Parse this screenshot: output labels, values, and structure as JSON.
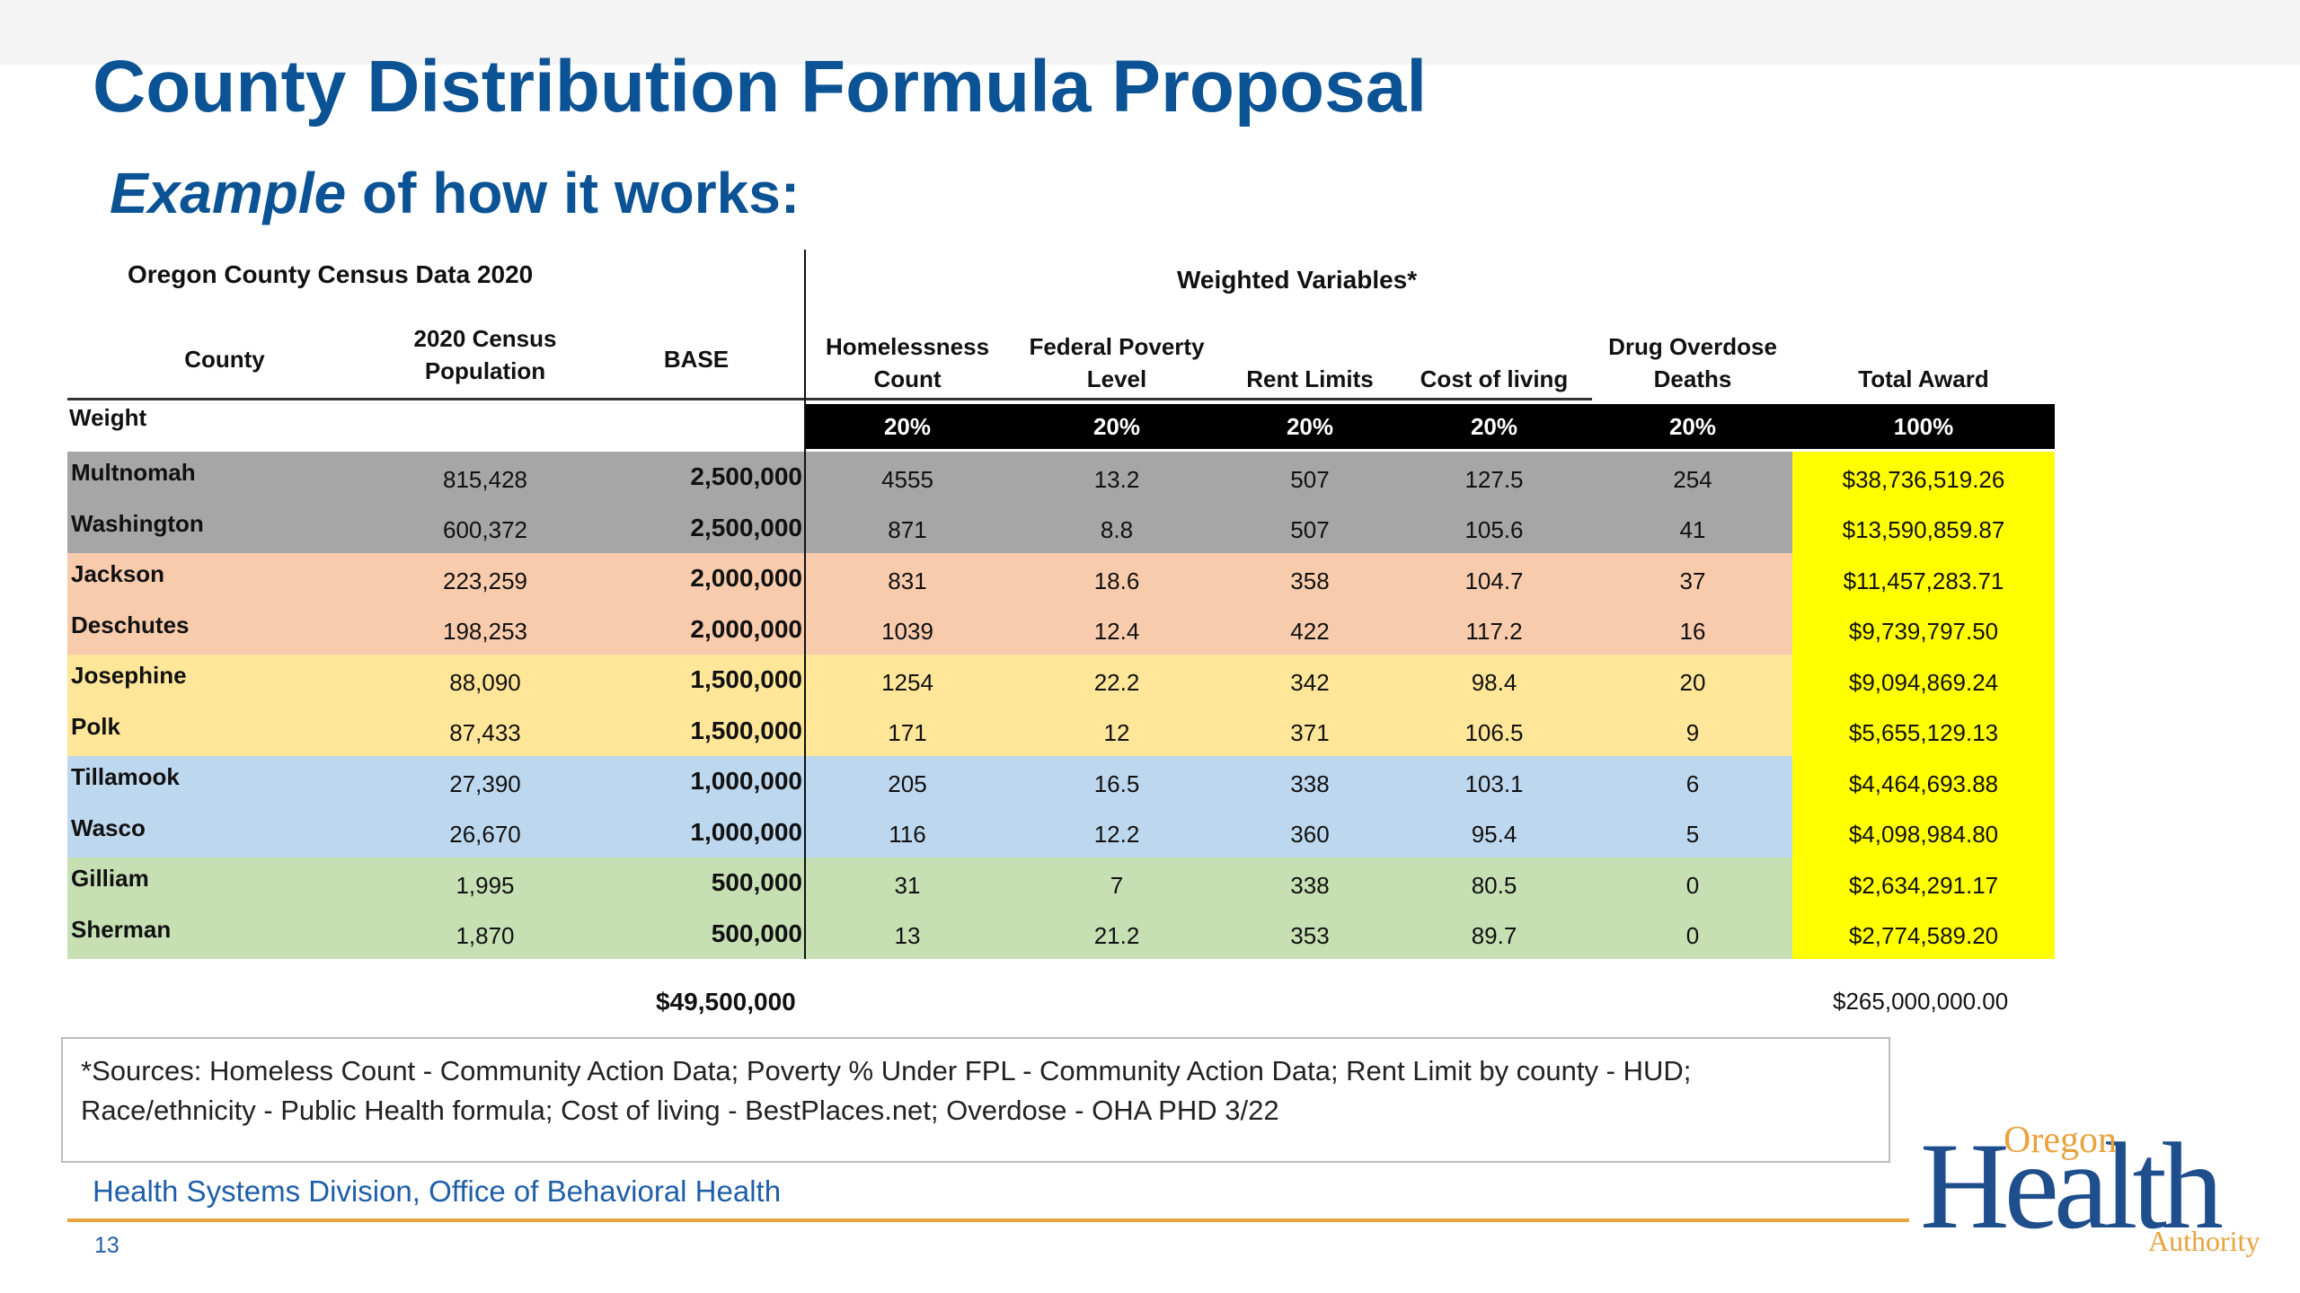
{
  "title": "County Distribution Formula Proposal",
  "subtitle": {
    "emphasis": "Example",
    "rest": " of how it works:"
  },
  "table": {
    "left_group": "Oregon County Census Data 2020",
    "right_group": "Weighted Variables*",
    "headers": {
      "county": "County",
      "population": "2020 Census\nPopulation",
      "base": "BASE",
      "homeless": "Homelessness\nCount",
      "poverty": "Federal Poverty\nLevel",
      "rent": "Rent Limits",
      "cost": "Cost of living",
      "overdose": "Drug Overdose\nDeaths",
      "award": "Total Award"
    },
    "weight_label": "Weight",
    "weights": [
      "20%",
      "20%",
      "20%",
      "20%",
      "20%",
      "100%"
    ],
    "rows": [
      {
        "county": "Multnomah",
        "population": "815,428",
        "base": "2,500,000",
        "homeless": "4555",
        "poverty": "13.2",
        "rent": "507",
        "cost": "127.5",
        "overdose": "254",
        "award": "$38,736,519.26"
      },
      {
        "county": "Washington",
        "population": "600,372",
        "base": "2,500,000",
        "homeless": "871",
        "poverty": "8.8",
        "rent": "507",
        "cost": "105.6",
        "overdose": "41",
        "award": "$13,590,859.87"
      },
      {
        "county": "Jackson",
        "population": "223,259",
        "base": "2,000,000",
        "homeless": "831",
        "poverty": "18.6",
        "rent": "358",
        "cost": "104.7",
        "overdose": "37",
        "award": "$11,457,283.71"
      },
      {
        "county": "Deschutes",
        "population": "198,253",
        "base": "2,000,000",
        "homeless": "1039",
        "poverty": "12.4",
        "rent": "422",
        "cost": "117.2",
        "overdose": "16",
        "award": "$9,739,797.50"
      },
      {
        "county": "Josephine",
        "population": "88,090",
        "base": "1,500,000",
        "homeless": "1254",
        "poverty": "22.2",
        "rent": "342",
        "cost": "98.4",
        "overdose": "20",
        "award": "$9,094,869.24"
      },
      {
        "county": "Polk",
        "population": "87,433",
        "base": "1,500,000",
        "homeless": "171",
        "poverty": "12",
        "rent": "371",
        "cost": "106.5",
        "overdose": "9",
        "award": "$5,655,129.13"
      },
      {
        "county": "Tillamook",
        "population": "27,390",
        "base": "1,000,000",
        "homeless": "205",
        "poverty": "16.5",
        "rent": "338",
        "cost": "103.1",
        "overdose": "6",
        "award": "$4,464,693.88"
      },
      {
        "county": "Wasco",
        "population": "26,670",
        "base": "1,000,000",
        "homeless": "116",
        "poverty": "12.2",
        "rent": "360",
        "cost": "95.4",
        "overdose": "5",
        "award": "$4,098,984.80"
      },
      {
        "county": "Gilliam",
        "population": "1,995",
        "base": "500,000",
        "homeless": "31",
        "poverty": "7",
        "rent": "338",
        "cost": "80.5",
        "overdose": "0",
        "award": "$2,634,291.17"
      },
      {
        "county": "Sherman",
        "population": "1,870",
        "base": "500,000",
        "homeless": "13",
        "poverty": "21.2",
        "rent": "353",
        "cost": "89.7",
        "overdose": "0",
        "award": "$2,774,589.20"
      }
    ],
    "base_total": "$49,500,000",
    "award_total": "$265,000,000.00"
  },
  "sources_line1": "*Sources: Homeless Count - Community Action Data; Poverty % Under FPL - Community Action Data; Rent Limit by county - HUD;",
  "sources_line2": "Race/ethnicity - Public Health formula; Cost of living - BestPlaces.net; Overdose - OHA PHD 3/22",
  "footer": "Health Systems Division, Office of Behavioral Health",
  "page_number": "13",
  "logo": {
    "top": "Oregon",
    "main": "Health",
    "bottom": "Authority"
  },
  "colors": {
    "title": "#0b5394",
    "grey_band": "#a6a6a6",
    "peach_band": "#f8cbad",
    "yellow_band": "#ffe699",
    "blue_band": "#bdd7ee",
    "green_band": "#c6e0b4",
    "award_highlight": "#ffff00",
    "footer_line": "#e8a33d"
  }
}
